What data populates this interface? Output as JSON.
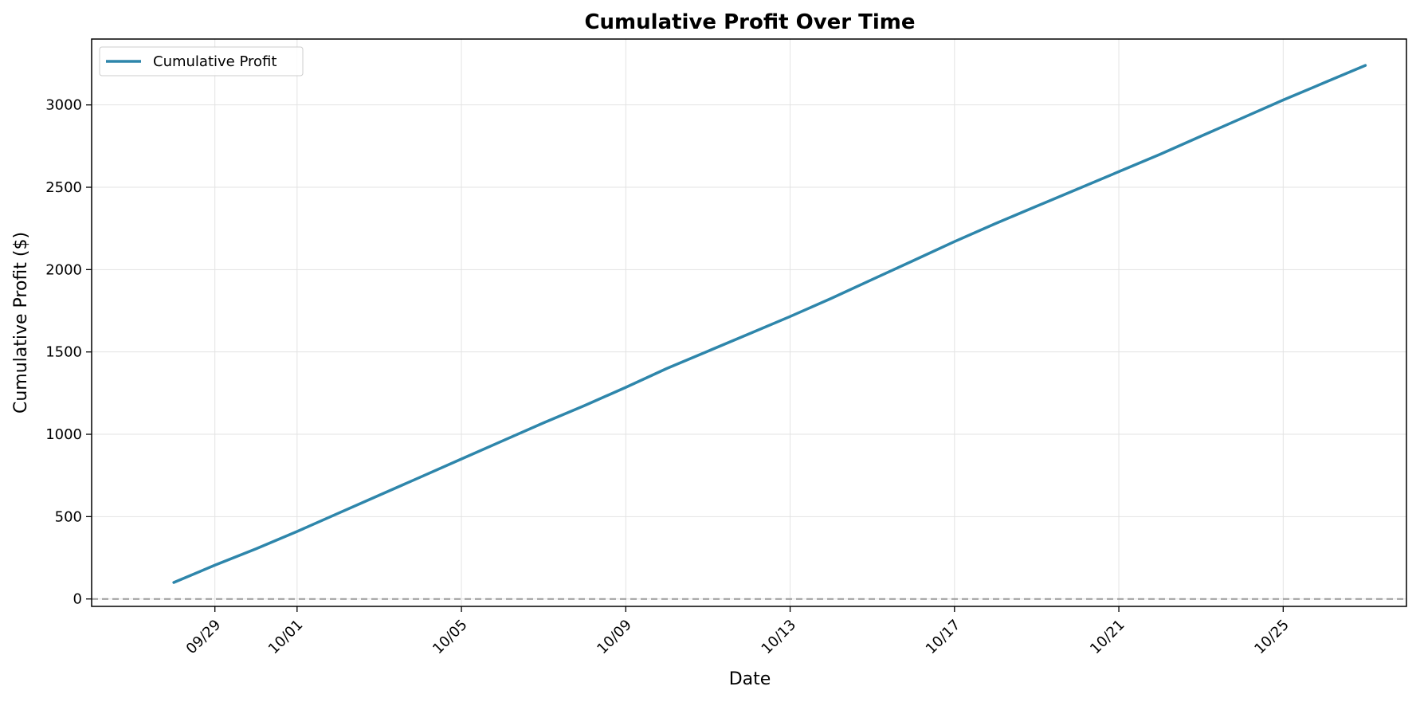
{
  "chart_data": {
    "type": "line",
    "title": "Cumulative Profit Over Time",
    "xlabel": "Date",
    "ylabel": "Cumulative Profit ($)",
    "x_ticks": [
      "09/29",
      "10/01",
      "10/05",
      "10/09",
      "10/13",
      "10/17",
      "10/21",
      "10/25"
    ],
    "y_ticks": [
      "0",
      "500",
      "1000",
      "1500",
      "2000",
      "2500",
      "3000"
    ],
    "xlim": [
      "2025-09-26",
      "2025-10-28"
    ],
    "ylim": [
      -45,
      3400
    ],
    "grid": true,
    "legend": {
      "position": "top-left",
      "entries": [
        "Cumulative Profit"
      ]
    },
    "series": [
      {
        "name": "Cumulative Profit",
        "color": "#2e86ab",
        "x": [
          "2025-09-28",
          "2025-09-29",
          "2025-09-30",
          "2025-10-01",
          "2025-10-02",
          "2025-10-03",
          "2025-10-04",
          "2025-10-05",
          "2025-10-06",
          "2025-10-07",
          "2025-10-08",
          "2025-10-09",
          "2025-10-10",
          "2025-10-11",
          "2025-10-12",
          "2025-10-13",
          "2025-10-14",
          "2025-10-15",
          "2025-10-16",
          "2025-10-17",
          "2025-10-18",
          "2025-10-19",
          "2025-10-20",
          "2025-10-21",
          "2025-10-22",
          "2025-10-23",
          "2025-10-24",
          "2025-10-25",
          "2025-10-26",
          "2025-10-27"
        ],
        "values": [
          100,
          205,
          305,
          410,
          520,
          630,
          740,
          850,
          960,
          1070,
          1175,
          1285,
          1400,
          1505,
          1610,
          1715,
          1825,
          1940,
          2055,
          2170,
          2280,
          2385,
          2490,
          2595,
          2700,
          2810,
          2920,
          3030,
          3135,
          3240
        ]
      }
    ],
    "reference_line": {
      "y": 0,
      "color": "#999999",
      "style": "dashed"
    }
  }
}
